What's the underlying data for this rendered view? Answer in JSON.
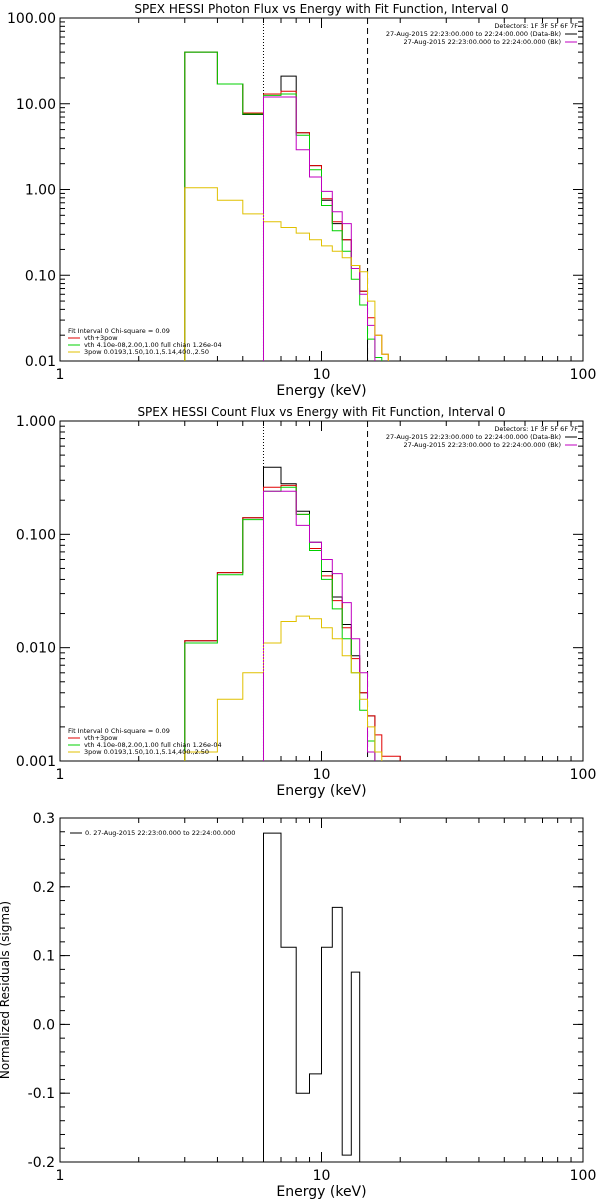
{
  "chart_data": [
    {
      "type": "line",
      "title": "SPEX HESSI Photon Flux vs Energy with Fit Function, Interval 0",
      "xlabel": "Energy (keV)",
      "ylabel": "",
      "xscale": "log",
      "yscale": "log",
      "xlim": [
        1,
        100
      ],
      "ylim": [
        0.01,
        100
      ],
      "x_ticks": [
        "1",
        "10",
        "100"
      ],
      "y_ticks": [
        "0.01",
        "0.10",
        "1.00",
        "10.00",
        "100.00"
      ],
      "vlines": [
        {
          "x": 6,
          "style": "dotted"
        },
        {
          "x": 15,
          "style": "dashed"
        }
      ],
      "detectors_label": "Detectors: 1F 3F 5F 6F 7F",
      "legend_right": [
        {
          "text": "27-Aug-2015 22:23:00.000 to 22:24:00.000 (Data-Bk)",
          "color": "#000000"
        },
        {
          "text": "27-Aug-2015 22:23:00.000 to 22:24:00.000 (Bk)",
          "color": "#c000c0"
        }
      ],
      "legend_left_header": "Fit Interval 0   Chi-square = 0.09",
      "legend_left": [
        {
          "text": "vth+3pow",
          "color": "#e00000"
        },
        {
          "text": "vth 4.10e-08,2.00,1.00  full chian 1.26e-04",
          "color": "#00d000"
        },
        {
          "text": "3pow 0.0193,1.50,10.1,5.14,400.,2.50",
          "color": "#e0c000"
        }
      ],
      "bin_edges": [
        3,
        4,
        5,
        6,
        7,
        8,
        9,
        10,
        11,
        12,
        13,
        14,
        15,
        16,
        17,
        18
      ],
      "series": [
        {
          "color": "#000000",
          "values": [
            40,
            17,
            7.5,
            13,
            21,
            4.6,
            1.9,
            0.75,
            0.4,
            0.26,
            0.13,
            0.065,
            null,
            null,
            null
          ]
        },
        {
          "color": "#e00000",
          "values": [
            40,
            17,
            7.8,
            13,
            14,
            4.6,
            1.9,
            0.78,
            0.42,
            0.26,
            0.13,
            0.065,
            0.032,
            0.02,
            0.012
          ]
        },
        {
          "color": "#00d000",
          "values": [
            40,
            17,
            7.6,
            12.5,
            13,
            4.3,
            1.7,
            0.65,
            0.33,
            0.19,
            0.09,
            0.045,
            0.018,
            0.011,
            null
          ]
        },
        {
          "color": "#c000c0",
          "values": [
            null,
            null,
            null,
            12,
            12,
            2.9,
            1.4,
            0.95,
            0.55,
            0.4,
            0.12,
            0.06,
            0.026,
            null,
            null
          ]
        },
        {
          "color": "#e0c000",
          "values": [
            1.05,
            0.75,
            0.52,
            0.42,
            0.36,
            0.31,
            0.26,
            0.22,
            0.19,
            0.16,
            0.13,
            0.11,
            0.05,
            0.02,
            0.012
          ]
        }
      ]
    },
    {
      "type": "line",
      "title": "SPEX HESSI Count Flux vs Energy with Fit Function, Interval 0",
      "xlabel": "Energy (keV)",
      "ylabel": "",
      "xscale": "log",
      "yscale": "log",
      "xlim": [
        1,
        100
      ],
      "ylim": [
        0.001,
        1
      ],
      "x_ticks": [
        "1",
        "10",
        "100"
      ],
      "y_ticks": [
        "0.001",
        "0.010",
        "0.100",
        "1.000"
      ],
      "vlines": [
        {
          "x": 6,
          "style": "dotted"
        },
        {
          "x": 15,
          "style": "dashed"
        }
      ],
      "detectors_label": "Detectors: 1F 3F 5F 6F 7F",
      "legend_right": [
        {
          "text": "27-Aug-2015 22:23:00.000 to 22:24:00.000 (Data-Bk)",
          "color": "#000000"
        },
        {
          "text": "27-Aug-2015 22:23:00.000 to 22:24:00.000 (Bk)",
          "color": "#c000c0"
        }
      ],
      "legend_left_header": "Fit Interval 0   Chi-square = 0.09",
      "legend_left": [
        {
          "text": "vth+3pow",
          "color": "#e00000"
        },
        {
          "text": "vth 4.10e-08,2.00,1.00  full chian 1.26e-04",
          "color": "#00d000"
        },
        {
          "text": "3pow 0.0193,1.50,10.1,5.14,400.,2.50",
          "color": "#e0c000"
        }
      ],
      "bin_edges": [
        3,
        4,
        5,
        6,
        7,
        8,
        9,
        10,
        11,
        12,
        13,
        14,
        15,
        16,
        17,
        18,
        20
      ],
      "series": [
        {
          "color": "#000000",
          "values": [
            0.0115,
            0.046,
            0.14,
            0.39,
            0.28,
            0.16,
            0.085,
            0.047,
            0.028,
            0.016,
            0.0085,
            0.004,
            0.0025,
            null,
            null,
            null
          ]
        },
        {
          "color": "#e00000",
          "values": [
            0.0115,
            0.046,
            0.14,
            0.26,
            0.27,
            0.15,
            0.075,
            0.043,
            0.026,
            0.015,
            0.008,
            0.004,
            0.0025,
            0.0017,
            0.0011,
            0.0011
          ]
        },
        {
          "color": "#00d000",
          "values": [
            0.011,
            0.044,
            0.135,
            0.24,
            0.26,
            0.15,
            0.072,
            0.04,
            0.022,
            0.012,
            0.006,
            0.0028,
            0.0015,
            null,
            null,
            null
          ]
        },
        {
          "color": "#c000c0",
          "values": [
            null,
            null,
            null,
            0.24,
            0.24,
            0.12,
            0.085,
            0.06,
            0.045,
            0.025,
            0.012,
            0.006,
            0.0012,
            null,
            null,
            null
          ]
        },
        {
          "color": "#e0c000",
          "values": [
            0.0012,
            0.0035,
            0.006,
            0.011,
            0.017,
            0.019,
            0.018,
            0.015,
            0.012,
            0.0085,
            0.006,
            0.0035,
            0.002,
            0.0012,
            null,
            null
          ]
        }
      ]
    },
    {
      "type": "line",
      "title": "",
      "xlabel": "Energy (keV)",
      "ylabel": "Normalized Residuals (sigma)",
      "xscale": "log",
      "yscale": "linear",
      "xlim": [
        1,
        100
      ],
      "ylim": [
        -0.2,
        0.3
      ],
      "x_ticks": [
        "1",
        "10",
        "100"
      ],
      "y_ticks": [
        "-0.2",
        "-0.1",
        "0.0",
        "0.1",
        "0.2",
        "0.3"
      ],
      "legend": [
        {
          "text": "0. 27-Aug-2015 22:23:00.000 to 22:24:00.000",
          "color": "#000000"
        }
      ],
      "bin_edges": [
        6,
        7,
        8,
        9,
        10,
        11,
        12,
        13,
        14,
        15
      ],
      "series": [
        {
          "color": "#000000",
          "values": [
            0.278,
            0.112,
            -0.1,
            -0.072,
            0.112,
            0.17,
            -0.19,
            0.076,
            null
          ]
        }
      ]
    }
  ]
}
